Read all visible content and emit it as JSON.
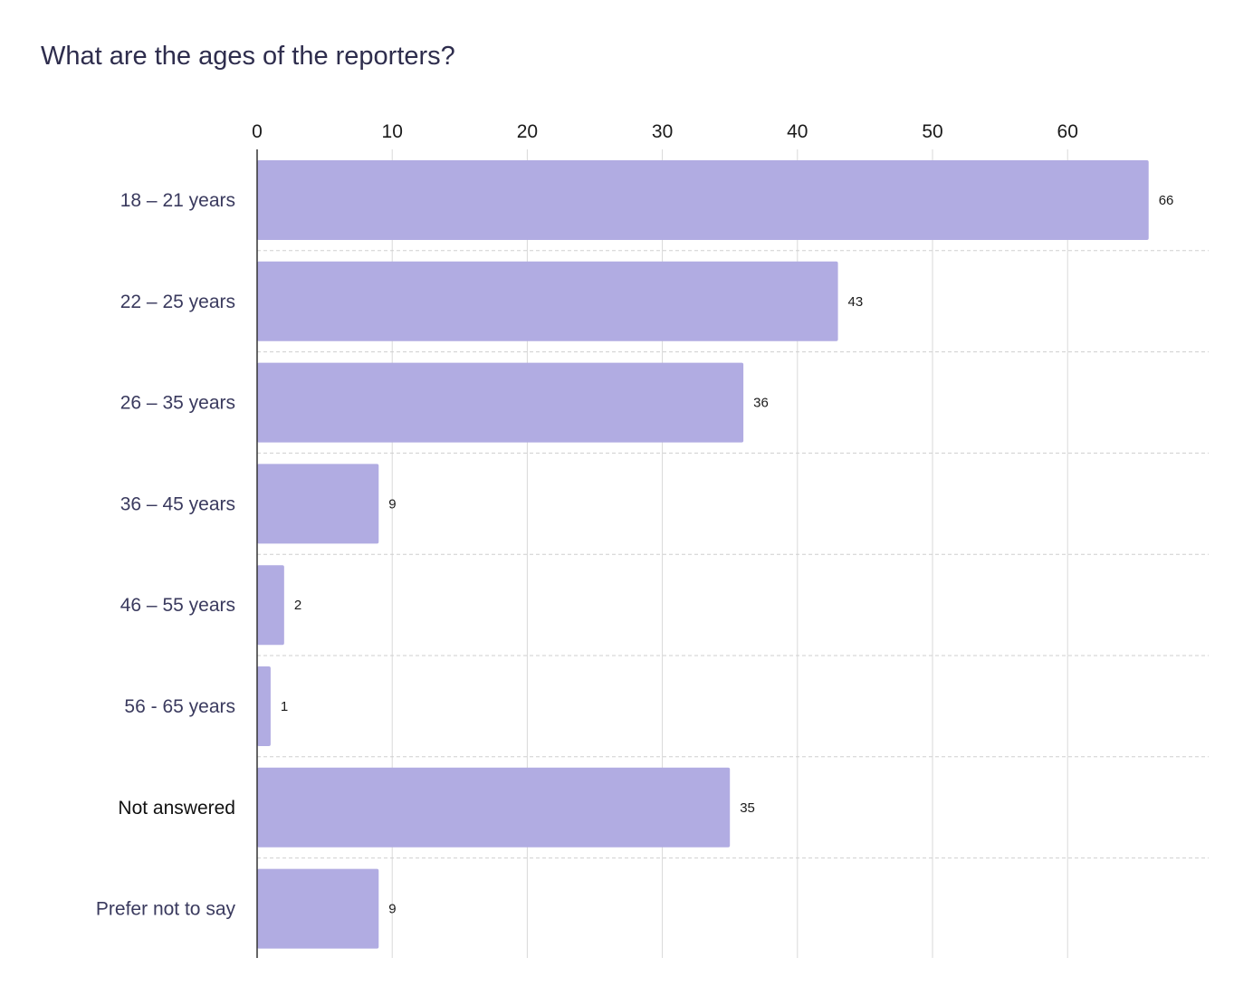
{
  "colors": {
    "bar": "#b1ace2",
    "title": "#2e2d4d",
    "category_label": "#3a3a5e",
    "category_label_emphasis": "#111111",
    "gridline": "#d9d9d9",
    "separator": "#cfcfcf",
    "axis": "#333333"
  },
  "chart_data": {
    "type": "bar",
    "orientation": "horizontal",
    "title": "What are the ages of the reporters?",
    "categories": [
      "18 – 21 years",
      "22 – 25 years",
      "26 – 35 years",
      "36 – 45 years",
      "46 – 55 years",
      "56 - 65 years",
      "Not answered",
      "Prefer not to say"
    ],
    "values": [
      66,
      43,
      36,
      9,
      2,
      1,
      35,
      9
    ],
    "emphasized_categories": [
      "Not answered"
    ],
    "x_ticks": [
      0,
      10,
      20,
      30,
      40,
      50,
      60
    ],
    "xlim": [
      0,
      70
    ],
    "xaxis_position": "top",
    "grid": true,
    "legend": "none",
    "data_labels": true
  }
}
